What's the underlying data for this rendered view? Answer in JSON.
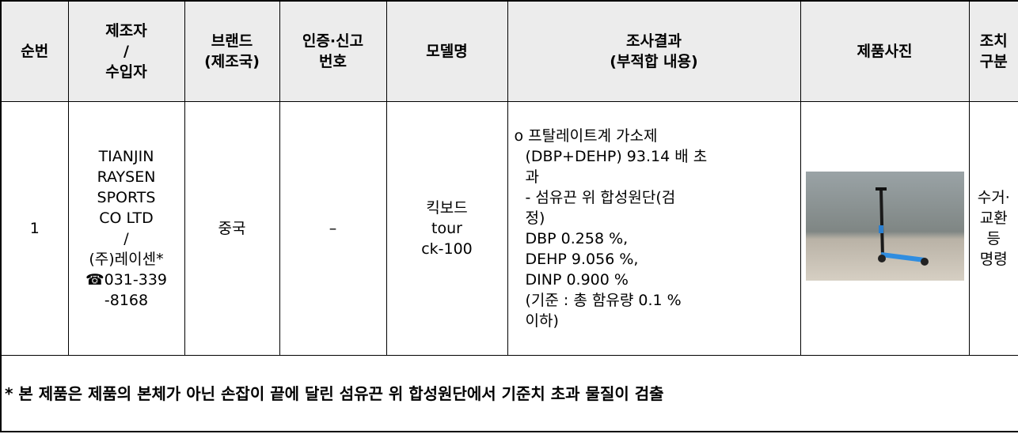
{
  "table": {
    "header": [
      [
        "순번"
      ],
      [
        "제조자",
        "/",
        "수입자"
      ],
      [
        "브랜드",
        "(제조국)"
      ],
      [
        "인증·신고",
        "번호"
      ],
      [
        "모델명"
      ],
      [
        "조사결과",
        "(부적합 내용)"
      ],
      [
        "제품사진"
      ],
      [
        "조치",
        "구분"
      ]
    ],
    "row": {
      "no": [
        "1"
      ],
      "maker": [
        "TIANJIN",
        "RAYSEN",
        "SPORTS",
        "CO LTD",
        "/",
        "(주)레이센*",
        "☎031-339",
        "-8168"
      ],
      "brand": [
        "중국"
      ],
      "cert": [
        "–"
      ],
      "model": [
        "킥보드",
        "tour",
        "ck-100"
      ],
      "result": [
        "o 프탈레이트계 가소제",
        "(DBP+DEHP) 93.14 배 초",
        "과",
        "- 섬유끈 위 합성원단(검",
        "정)",
        "DBP 0.258 %,",
        "DEHP 9.056 %,",
        "DINP 0.900 %",
        "(기준 : 총 함유량 0.1 %",
        "이하)"
      ],
      "action": [
        "수거·",
        "교환",
        "등",
        "명령"
      ]
    },
    "footer": "* 본 제품은 제품의 본체가 아닌 손잡이 끝에 달린 섬유끈 위 합성원단에서 기준치 초과 물질이 검출"
  }
}
